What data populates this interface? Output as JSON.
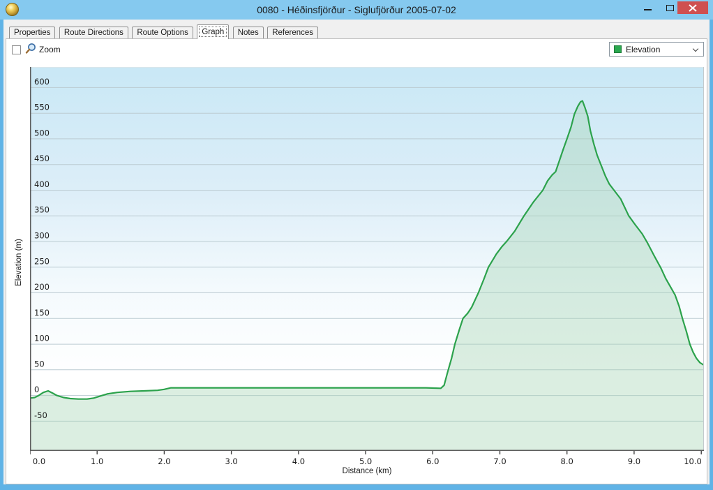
{
  "window": {
    "title": "0080 - Héðinsfjörður - Siglufjörður 2005-07-02"
  },
  "tabs": [
    {
      "label": "Properties",
      "selected": false
    },
    {
      "label": "Route Directions",
      "selected": false
    },
    {
      "label": "Route Options",
      "selected": false
    },
    {
      "label": "Graph",
      "selected": true
    },
    {
      "label": "Notes",
      "selected": false
    },
    {
      "label": "References",
      "selected": false
    }
  ],
  "toolbar": {
    "zoom_checkbox_checked": false,
    "zoom_label": "Zoom",
    "series_selector": {
      "value": "Elevation",
      "swatch_color": "#2ba84f"
    }
  },
  "chart_data": {
    "type": "area",
    "title": "",
    "xlabel": "Distance  (km)",
    "ylabel": "Elevation (m)",
    "xlim": [
      0,
      10.04
    ],
    "ylim": [
      -108,
      640
    ],
    "grid": "horizontal",
    "x_ticks": [
      0,
      1,
      2,
      3,
      4,
      5,
      6,
      7,
      8,
      9,
      10
    ],
    "x_tick_labels": [
      "0.0",
      "1.0",
      "2.0",
      "3.0",
      "4.0",
      "5.0",
      "6.0",
      "7.0",
      "8.0",
      "9.0",
      "10.0"
    ],
    "y_ticks": [
      -50,
      0,
      50,
      100,
      150,
      200,
      250,
      300,
      350,
      400,
      450,
      500,
      550,
      600
    ],
    "colors": {
      "grid": "#bccbd2",
      "axis": "#5d5d5d",
      "bg_gradient": [
        "#c9e8f6",
        "#ddeef8",
        "#f4fafd",
        "#ffffff"
      ]
    },
    "series": [
      {
        "name": "Elevation",
        "color": "#2ca24c",
        "fill": "rgba(164,213,181,0.40)",
        "points": [
          [
            0.0,
            -5
          ],
          [
            0.07,
            -4
          ],
          [
            0.13,
            0
          ],
          [
            0.2,
            6
          ],
          [
            0.27,
            9
          ],
          [
            0.33,
            5
          ],
          [
            0.4,
            0
          ],
          [
            0.5,
            -4
          ],
          [
            0.6,
            -6
          ],
          [
            0.72,
            -7
          ],
          [
            0.85,
            -7
          ],
          [
            0.95,
            -5
          ],
          [
            1.05,
            -1
          ],
          [
            1.15,
            3
          ],
          [
            1.3,
            6
          ],
          [
            1.5,
            8
          ],
          [
            1.7,
            9
          ],
          [
            1.9,
            10
          ],
          [
            2.0,
            12
          ],
          [
            2.1,
            15
          ],
          [
            2.4,
            15
          ],
          [
            3.0,
            15
          ],
          [
            3.6,
            15
          ],
          [
            4.2,
            15
          ],
          [
            4.8,
            15
          ],
          [
            5.4,
            15
          ],
          [
            5.9,
            15
          ],
          [
            6.12,
            14
          ],
          [
            6.17,
            20
          ],
          [
            6.22,
            45
          ],
          [
            6.28,
            72
          ],
          [
            6.33,
            100
          ],
          [
            6.4,
            130
          ],
          [
            6.45,
            150
          ],
          [
            6.52,
            160
          ],
          [
            6.58,
            172
          ],
          [
            6.63,
            186
          ],
          [
            6.68,
            200
          ],
          [
            6.76,
            226
          ],
          [
            6.83,
            250
          ],
          [
            6.88,
            261
          ],
          [
            6.95,
            276
          ],
          [
            7.03,
            290
          ],
          [
            7.1,
            300
          ],
          [
            7.22,
            320
          ],
          [
            7.36,
            350
          ],
          [
            7.5,
            377
          ],
          [
            7.64,
            400
          ],
          [
            7.71,
            418
          ],
          [
            7.78,
            430
          ],
          [
            7.83,
            436
          ],
          [
            7.88,
            455
          ],
          [
            7.94,
            478
          ],
          [
            8.0,
            500
          ],
          [
            8.06,
            523
          ],
          [
            8.11,
            548
          ],
          [
            8.16,
            563
          ],
          [
            8.2,
            572
          ],
          [
            8.23,
            574
          ],
          [
            8.27,
            560
          ],
          [
            8.31,
            544
          ],
          [
            8.35,
            515
          ],
          [
            8.4,
            490
          ],
          [
            8.45,
            468
          ],
          [
            8.51,
            448
          ],
          [
            8.57,
            428
          ],
          [
            8.63,
            412
          ],
          [
            8.7,
            400
          ],
          [
            8.8,
            383
          ],
          [
            8.92,
            350
          ],
          [
            9.02,
            332
          ],
          [
            9.12,
            315
          ],
          [
            9.2,
            297
          ],
          [
            9.3,
            272
          ],
          [
            9.4,
            248
          ],
          [
            9.47,
            228
          ],
          [
            9.54,
            212
          ],
          [
            9.61,
            196
          ],
          [
            9.67,
            174
          ],
          [
            9.72,
            150
          ],
          [
            9.78,
            124
          ],
          [
            9.83,
            100
          ],
          [
            9.88,
            84
          ],
          [
            9.93,
            72
          ],
          [
            9.98,
            64
          ],
          [
            10.03,
            60
          ]
        ]
      }
    ]
  },
  "colors": {
    "titlebar": "#85c9ef",
    "window_border": "#60b3e6",
    "close_button": "#cf5050",
    "accent_green": "#2ca24c"
  }
}
